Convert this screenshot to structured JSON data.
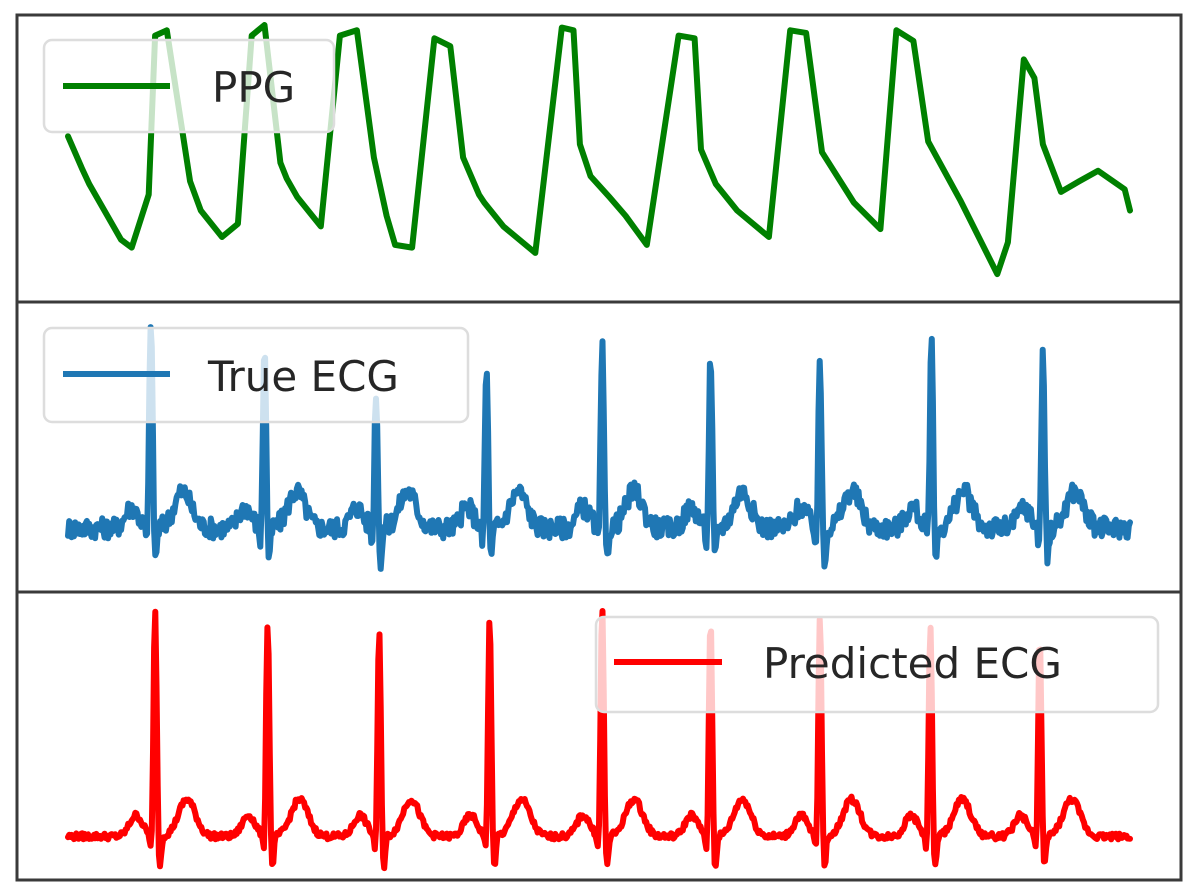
{
  "chart_data": [
    {
      "type": "line",
      "series": [
        {
          "name": "PPG",
          "color": "#008000",
          "x": [
            0,
            0.013,
            0.02,
            0.05,
            0.06,
            0.076,
            0.082,
            0.093,
            0.115,
            0.125,
            0.145,
            0.16,
            0.173,
            0.185,
            0.2,
            0.206,
            0.216,
            0.238,
            0.256,
            0.272,
            0.288,
            0.3,
            0.308,
            0.324,
            0.345,
            0.36,
            0.372,
            0.387,
            0.392,
            0.41,
            0.44,
            0.465,
            0.476,
            0.482,
            0.492,
            0.51,
            0.525,
            0.545,
            0.575,
            0.59,
            0.596,
            0.61,
            0.63,
            0.66,
            0.68,
            0.695,
            0.71,
            0.74,
            0.765,
            0.78,
            0.796,
            0.81,
            0.84,
            0.875,
            0.885,
            0.9,
            0.91,
            0.918,
            0.935,
            0.952,
            0.97,
            0.995,
            1
          ],
          "y": [
            0.58,
            0.46,
            0.4,
            0.19,
            0.16,
            0.36,
            0.96,
            0.98,
            0.41,
            0.3,
            0.2,
            0.25,
            0.96,
            1.0,
            0.48,
            0.42,
            0.35,
            0.24,
            0.96,
            0.98,
            0.5,
            0.28,
            0.17,
            0.16,
            0.95,
            0.92,
            0.5,
            0.36,
            0.33,
            0.24,
            0.14,
            0.99,
            0.98,
            0.55,
            0.43,
            0.35,
            0.28,
            0.17,
            0.96,
            0.95,
            0.53,
            0.4,
            0.3,
            0.2,
            0.98,
            0.97,
            0.52,
            0.33,
            0.23,
            0.98,
            0.94,
            0.56,
            0.34,
            0.06,
            0.18,
            0.87,
            0.8,
            0.55,
            0.37,
            0.41,
            0.45,
            0.38,
            0.3
          ]
        }
      ]
    },
    {
      "type": "line",
      "series": [
        {
          "name": "True ECG",
          "color": "#1f77b4",
          "beats": [
            0.078,
            0.185,
            0.29,
            0.394,
            0.503,
            0.605,
            0.708,
            0.813,
            0.918
          ],
          "peak_heights": [
            1.0,
            0.9,
            0.72,
            0.8,
            0.88,
            0.85,
            0.82,
            0.92,
            0.85
          ],
          "baseline": 0.18,
          "noise": 0.04
        }
      ]
    },
    {
      "type": "line",
      "series": [
        {
          "name": "Predicted ECG",
          "color": "#ff0000",
          "beats": [
            0.082,
            0.188,
            0.293,
            0.397,
            0.503,
            0.605,
            0.708,
            0.812,
            0.915
          ],
          "peak_heights": [
            0.98,
            0.94,
            0.9,
            0.95,
            1.0,
            0.95,
            0.96,
            0.93,
            0.88
          ],
          "baseline": 0.12,
          "noise": 0.012
        }
      ]
    }
  ]
}
